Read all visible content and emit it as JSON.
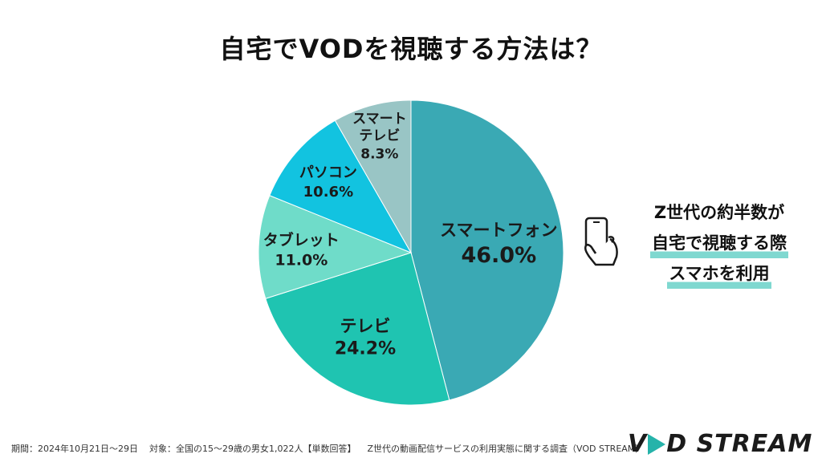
{
  "title": "自宅でVODを視聴する方法は？",
  "chart_data": {
    "type": "pie",
    "title": "自宅でVODを視聴する方法は？",
    "slices": [
      {
        "label": "スマートフォン",
        "value": 46.0,
        "value_label": "46.0%",
        "color": "#3aa9b4"
      },
      {
        "label": "テレビ",
        "value": 24.2,
        "value_label": "24.2%",
        "color": "#1fc4b1"
      },
      {
        "label": "タブレット",
        "value": 11.0,
        "value_label": "11.0%",
        "color": "#6fdcc9"
      },
      {
        "label": "パソコン",
        "value": 10.6,
        "value_label": "10.6%",
        "color": "#12c3e0"
      },
      {
        "label": "スマートテレビ",
        "label_lines": [
          "スマート",
          "テレビ"
        ],
        "value": 8.3,
        "value_label": "8.3%",
        "color": "#99c5c5"
      }
    ]
  },
  "callout": {
    "lines": [
      "Z世代の約半数が",
      "自宅で視聴する際",
      "スマホを利用"
    ],
    "highlight_color": "#7fd8d0",
    "icon": "hand-holding-phone-icon"
  },
  "footer": {
    "period": "期間：2024年10月21日〜29日",
    "target": "対象：全国の15〜29歳の男女1,022人【単数回答】",
    "survey": "Z世代の動画配信サービスの利用実態に関する調査（VOD STREAM）"
  },
  "logo": {
    "left": "V",
    "right": "D STREAM",
    "play_color": "#26b3aa"
  }
}
